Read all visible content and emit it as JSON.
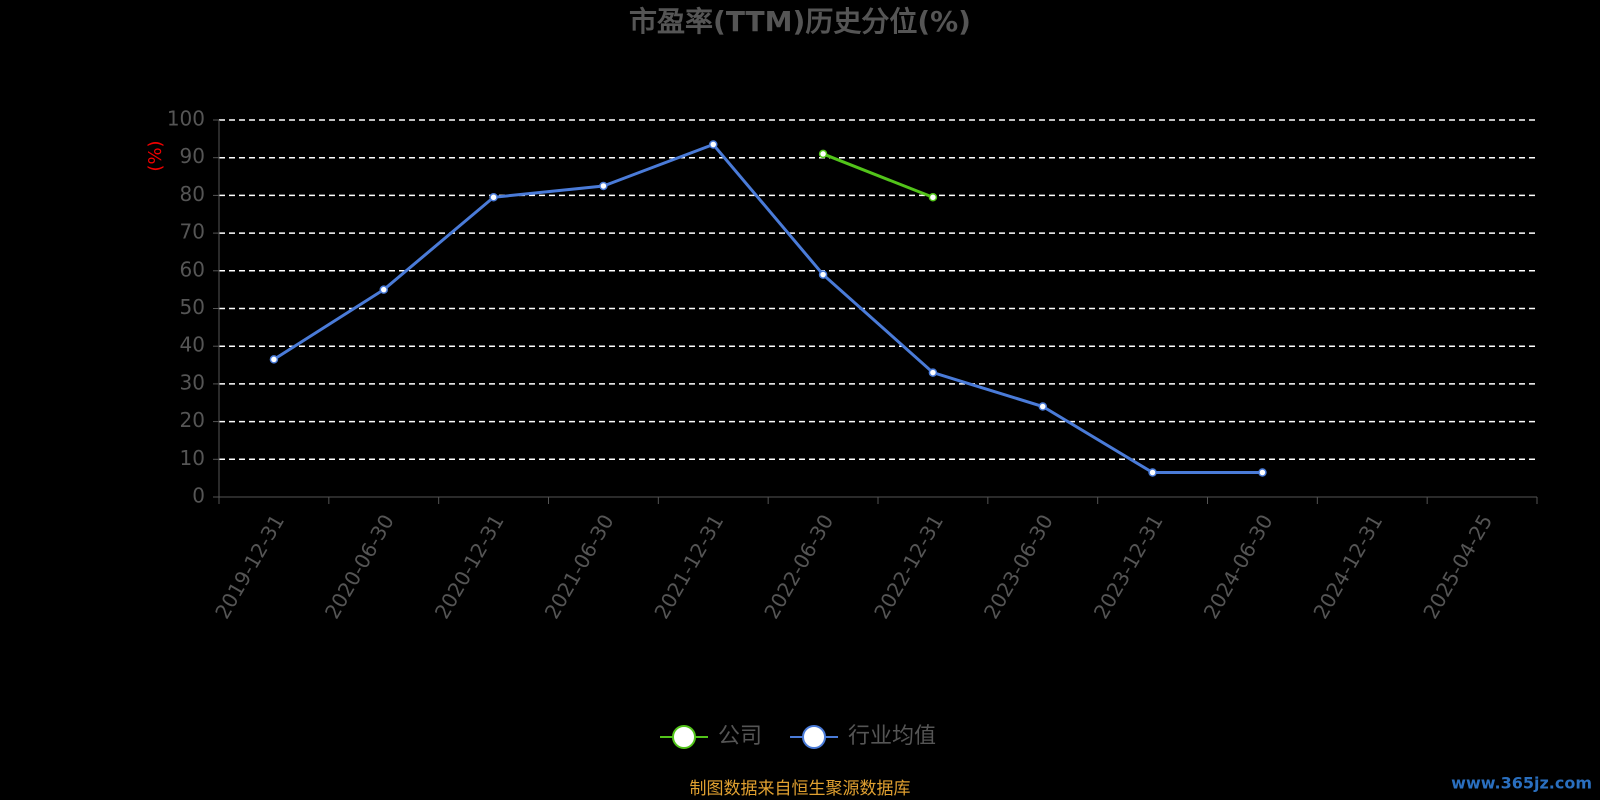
{
  "chart_data": {
    "type": "line",
    "title": "市盈率(TTM)历史分位(%)",
    "y_label": "(%)",
    "categories": [
      "2019-12-31",
      "2020-06-30",
      "2020-12-31",
      "2021-06-30",
      "2021-12-31",
      "2022-06-30",
      "2022-12-31",
      "2023-06-30",
      "2023-12-31",
      "2024-06-30",
      "2024-12-31",
      "2025-04-25"
    ],
    "series": [
      {
        "name": "公司",
        "color": "#52c41a",
        "values": [
          null,
          null,
          null,
          null,
          null,
          91,
          79.5,
          null,
          null,
          null,
          null,
          null
        ]
      },
      {
        "name": "行业均值",
        "color": "#4a7bd8",
        "values": [
          36.5,
          55,
          79.5,
          82.5,
          93.5,
          59,
          33,
          24,
          6.5,
          6.5,
          null,
          null
        ]
      }
    ],
    "ylim": [
      0,
      100
    ],
    "yticks": [
      0,
      10,
      20,
      30,
      40,
      50,
      60,
      70,
      80,
      90,
      100
    ],
    "grid": true,
    "legend": "bottom",
    "source": "制图数据来自恒生聚源数据库",
    "watermark": "www.365jz.com"
  }
}
